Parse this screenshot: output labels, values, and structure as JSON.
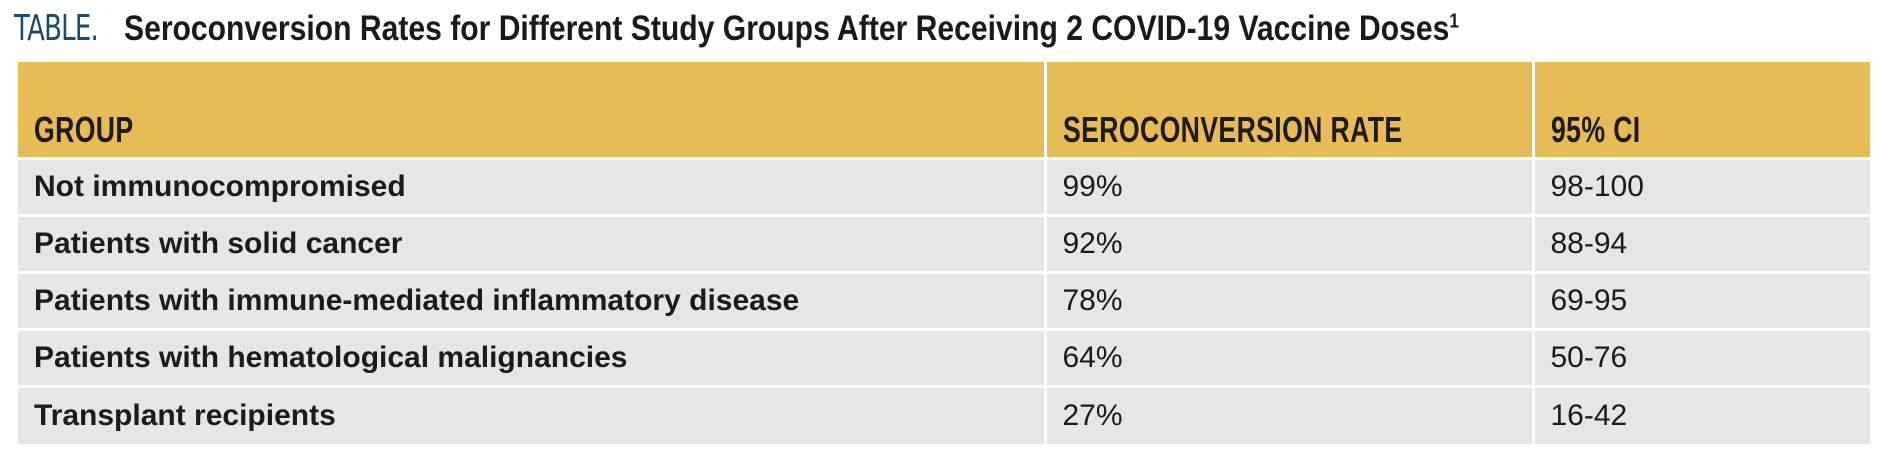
{
  "title": {
    "label": "TABLE.",
    "text": "Seroconversion Rates for Different Study Groups After Receiving 2 COVID-19 Vaccine Doses",
    "footnote": "1"
  },
  "table": {
    "headers": [
      "GROUP",
      "SEROCONVERSION RATE",
      "95% CI"
    ],
    "rows": [
      {
        "group": "Not immunocompromised",
        "rate": "99%",
        "ci": "98-100"
      },
      {
        "group": "Patients with solid cancer",
        "rate": "92%",
        "ci": "88-94"
      },
      {
        "group": "Patients with immune-mediated inflammatory disease",
        "rate": "78%",
        "ci": "69-95"
      },
      {
        "group": "Patients with hematological malignancies",
        "rate": "64%",
        "ci": "50-76"
      },
      {
        "group": "Transplant recipients",
        "rate": "27%",
        "ci": "16-42"
      }
    ]
  },
  "colors": {
    "header_bg": "#e7bb56",
    "row_bg": "#e6e6e6",
    "label_color": "#1c4a6e"
  }
}
